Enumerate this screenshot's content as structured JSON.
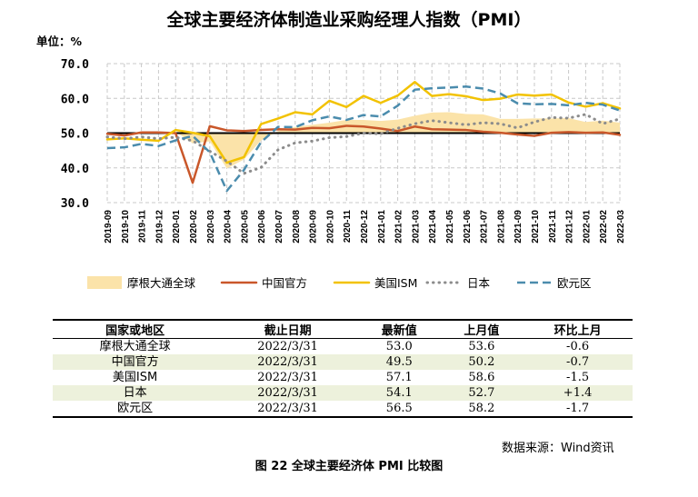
{
  "title": "全球主要经济体制造业采购经理人指数（PMI）",
  "unit_label": "单位：%",
  "chart_data": {
    "type": "line",
    "title": "全球主要经济体制造业采购经理人指数（PMI）",
    "ylim": [
      30,
      70
    ],
    "yticks": [
      "30.0",
      "40.0",
      "50.0",
      "60.0",
      "70.0"
    ],
    "grid": true,
    "legend_position": "bottom",
    "categories": [
      "2019-09",
      "2019-10",
      "2019-11",
      "2019-12",
      "2020-01",
      "2020-02",
      "2020-03",
      "2020-04",
      "2020-05",
      "2020-06",
      "2020-07",
      "2020-08",
      "2020-09",
      "2020-10",
      "2020-11",
      "2020-12",
      "2021-01",
      "2021-02",
      "2021-03",
      "2021-04",
      "2021-05",
      "2021-06",
      "2021-07",
      "2021-08",
      "2021-09",
      "2021-10",
      "2021-11",
      "2021-12",
      "2022-01",
      "2022-02",
      "2022-03"
    ],
    "series": [
      {
        "name": "摩根大通全球",
        "style": "area",
        "color": "#fbe3a9",
        "values": [
          49.7,
          49.8,
          50.3,
          50.1,
          50.4,
          47.1,
          47.6,
          39.8,
          42.4,
          47.9,
          50.6,
          51.8,
          52.4,
          53.0,
          53.8,
          53.8,
          53.5,
          53.9,
          55.0,
          55.9,
          56.0,
          55.5,
          55.4,
          54.1,
          54.1,
          54.2,
          54.2,
          54.3,
          53.2,
          53.6,
          53.0
        ]
      },
      {
        "name": "中国官方",
        "style": "solid",
        "color": "#c9572a",
        "values": [
          49.8,
          49.3,
          50.2,
          50.2,
          50.0,
          35.7,
          52.0,
          50.8,
          50.6,
          50.9,
          51.1,
          51.0,
          51.5,
          51.4,
          52.1,
          51.9,
          51.3,
          50.6,
          51.9,
          51.1,
          51.0,
          50.9,
          50.4,
          50.1,
          49.6,
          49.2,
          50.1,
          50.3,
          50.1,
          50.2,
          49.5
        ]
      },
      {
        "name": "美国ISM",
        "style": "solid",
        "color": "#f2c200",
        "values": [
          48.2,
          48.5,
          48.1,
          47.8,
          50.9,
          50.1,
          49.1,
          41.5,
          43.1,
          52.6,
          54.2,
          56.0,
          55.4,
          59.3,
          57.5,
          60.7,
          58.7,
          60.8,
          64.7,
          60.7,
          61.2,
          60.6,
          59.5,
          59.9,
          61.1,
          60.8,
          61.1,
          58.8,
          57.6,
          58.6,
          57.1
        ]
      },
      {
        "name": "日本",
        "style": "dotted",
        "color": "#8c8c8c",
        "values": [
          48.9,
          48.4,
          48.9,
          48.4,
          48.8,
          47.8,
          44.8,
          41.9,
          38.4,
          40.1,
          45.2,
          47.2,
          47.7,
          48.7,
          49.0,
          50.0,
          49.8,
          51.4,
          52.7,
          53.6,
          53.0,
          52.4,
          53.0,
          52.7,
          51.5,
          53.2,
          54.5,
          54.3,
          55.4,
          52.7,
          54.1
        ]
      },
      {
        "name": "欧元区",
        "style": "dashed",
        "color": "#4b8cad",
        "values": [
          45.7,
          45.9,
          46.9,
          46.3,
          47.9,
          49.2,
          44.5,
          33.4,
          39.4,
          47.4,
          51.8,
          51.7,
          53.7,
          54.8,
          53.8,
          55.2,
          54.8,
          57.9,
          62.5,
          62.9,
          63.1,
          63.4,
          62.8,
          61.4,
          58.6,
          58.3,
          58.4,
          58.0,
          58.7,
          58.2,
          56.5
        ]
      }
    ],
    "reference_line": {
      "value": 50,
      "color": "#000000"
    }
  },
  "table": {
    "headers": [
      "国家或地区",
      "截止日期",
      "最新值",
      "上月值",
      "环比上月"
    ],
    "rows": [
      [
        "摩根大通全球",
        "2022/3/31",
        "53.0",
        "53.6",
        "-0.6"
      ],
      [
        "中国官方",
        "2022/3/31",
        "49.5",
        "50.2",
        "-0.7"
      ],
      [
        "美国ISM",
        "2022/3/31",
        "57.1",
        "58.6",
        "-1.5"
      ],
      [
        "日本",
        "2022/3/31",
        "54.1",
        "52.7",
        "+1.4"
      ],
      [
        "欧元区",
        "2022/3/31",
        "56.5",
        "58.2",
        "-1.7"
      ]
    ]
  },
  "source": "数据来源：Wind资讯",
  "caption": "图 22   全球主要经济体 PMI 比较图"
}
